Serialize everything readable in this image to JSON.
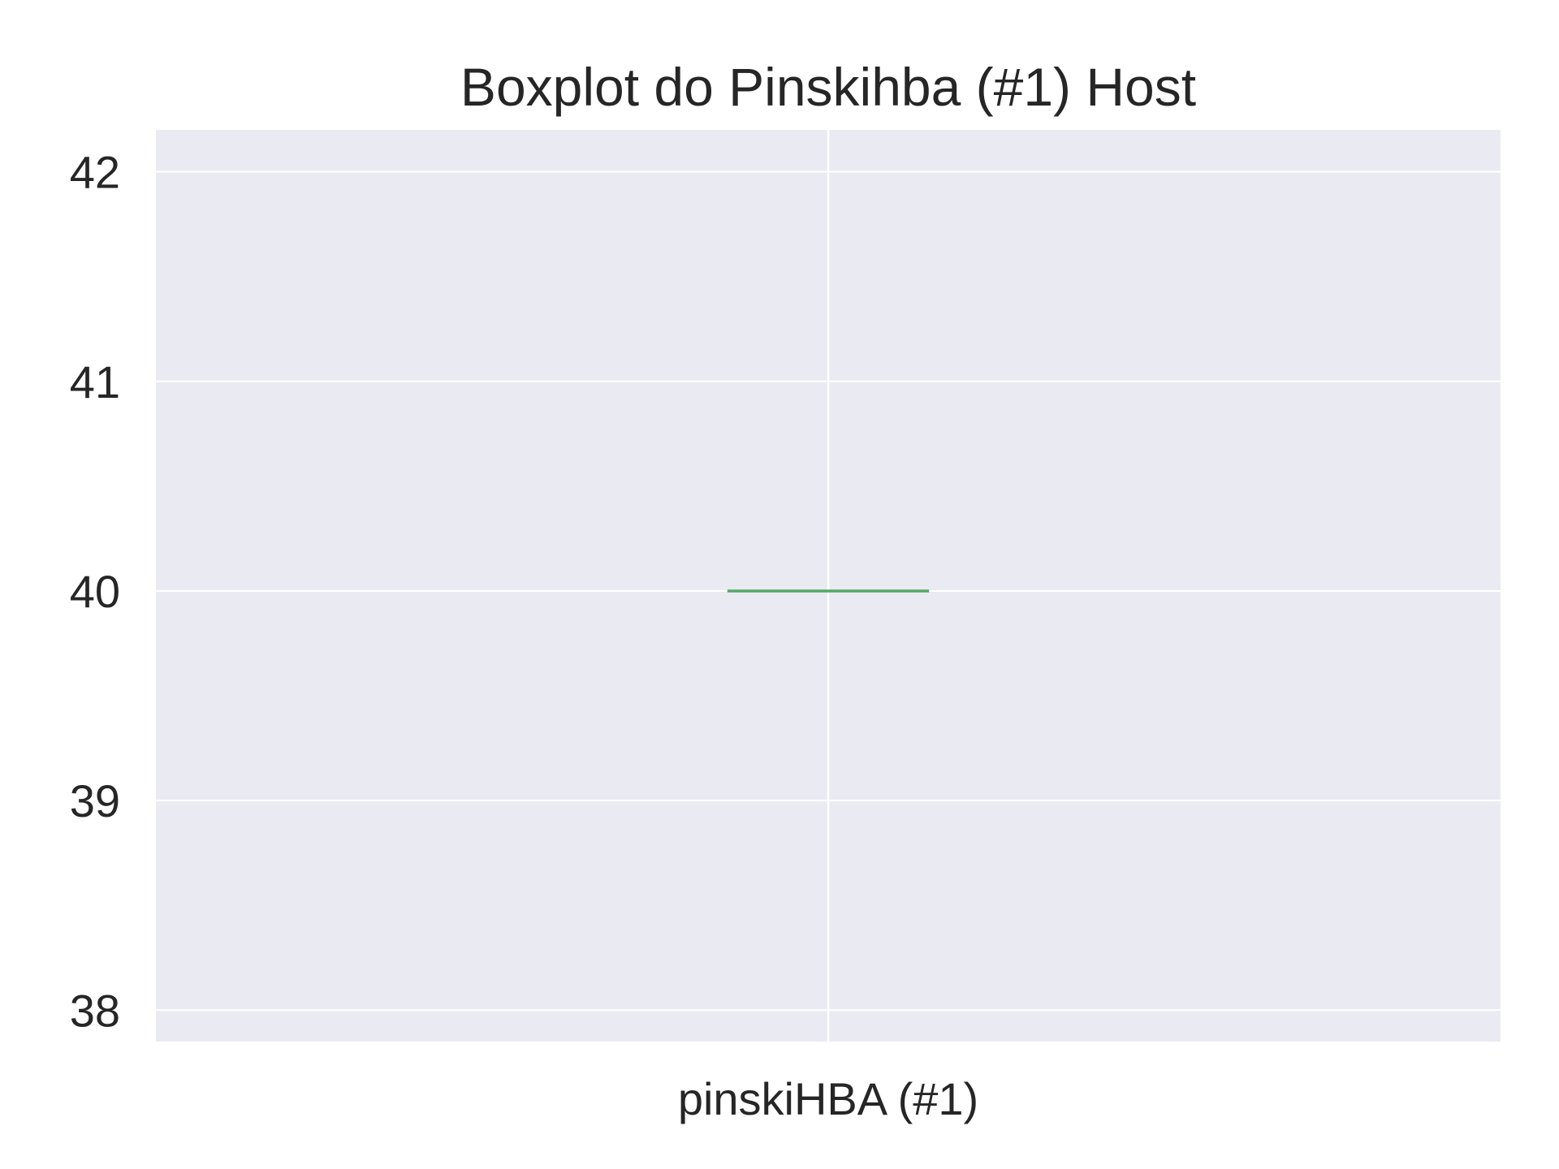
{
  "chart_data": {
    "type": "box",
    "title": "Boxplot do Pinskihba (#1) Host",
    "xlabel": "",
    "ylabel": "",
    "categories": [
      "pinskiHBA (#1)"
    ],
    "series": [
      {
        "values": [
          {
            "min": 40,
            "q1": 40,
            "median": 40,
            "q3": 40,
            "max": 40
          }
        ]
      }
    ],
    "ylim": [
      37.85,
      42.2
    ],
    "yticks": [
      38,
      39,
      40,
      41,
      42
    ],
    "grid": true,
    "colors": {
      "plot_background": "#eaeaf2",
      "grid": "#ffffff",
      "median": "#55a868",
      "text": "#262626"
    }
  }
}
